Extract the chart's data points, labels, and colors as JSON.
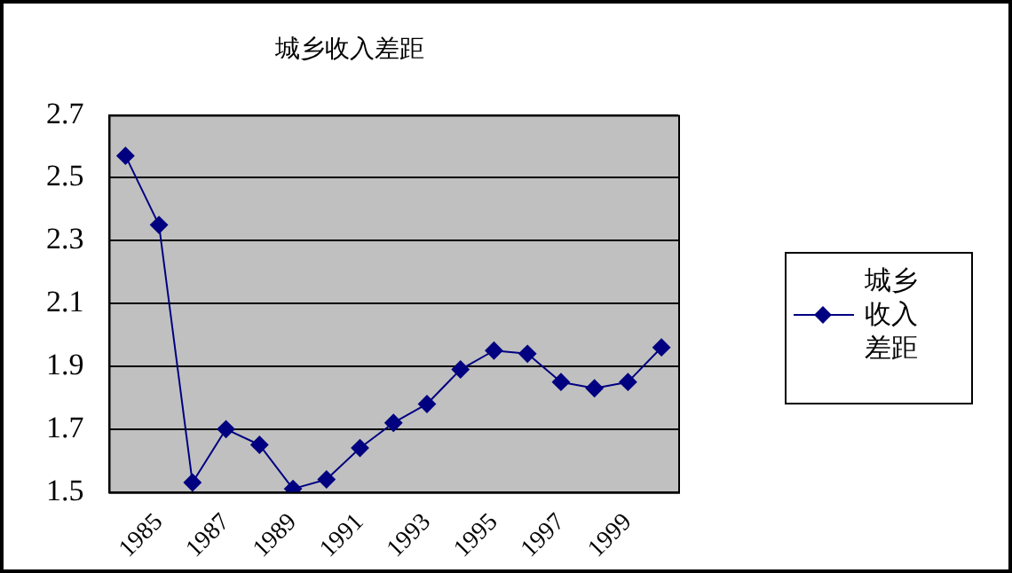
{
  "chart_data": {
    "type": "line",
    "title": "城乡收入差距",
    "categories": [
      null,
      "1985",
      null,
      "1987",
      null,
      "1989",
      null,
      "1991",
      null,
      "1993",
      null,
      "1995",
      null,
      "1997",
      null,
      "1999",
      null
    ],
    "series": [
      {
        "name": "城乡收入差距",
        "color": "#000080",
        "values": [
          2.57,
          2.35,
          1.53,
          1.7,
          1.65,
          1.51,
          1.54,
          1.64,
          1.72,
          1.78,
          1.89,
          1.95,
          1.94,
          1.85,
          1.83,
          1.85,
          1.96
        ]
      }
    ],
    "ylim": [
      1.5,
      2.7
    ],
    "yticks": [
      1.5,
      1.7,
      1.9,
      2.1,
      2.3,
      2.5,
      2.7
    ],
    "grid": "y",
    "legend": "right",
    "marker": "diamond",
    "line_style": "solid"
  }
}
